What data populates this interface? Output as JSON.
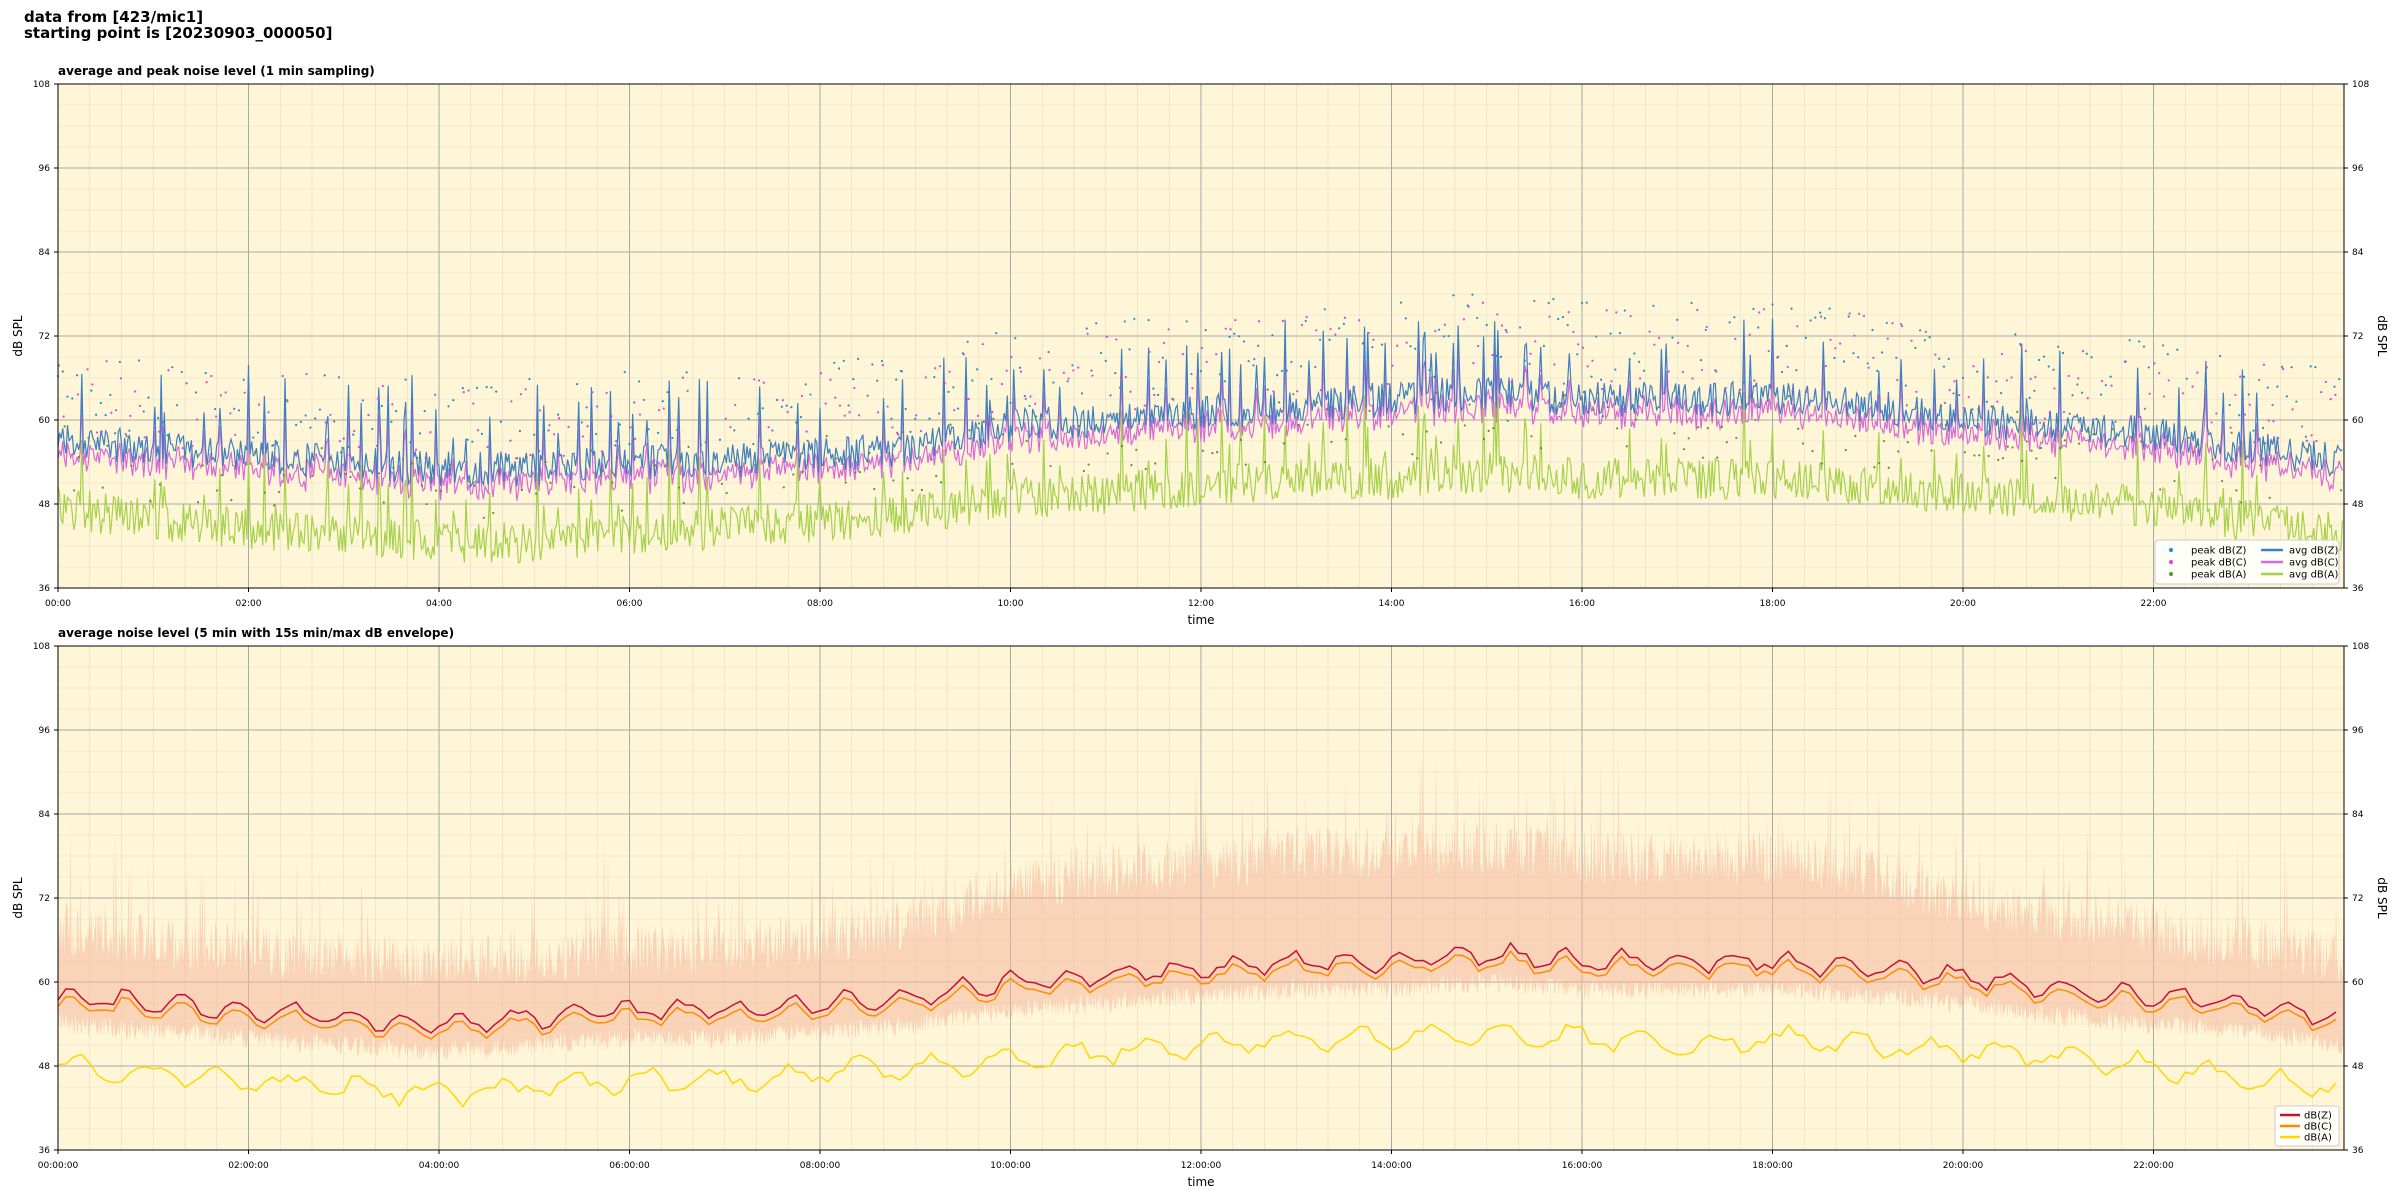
{
  "header": {
    "line1": "data from [423/mic1]",
    "line2": "starting point is [20230903_000050]"
  },
  "colors": {
    "plot_bg": "#fff6d8",
    "peak_z": "#1e90c8",
    "peak_c": "#e040e0",
    "peak_a": "#5a8f3a",
    "avg_z": "#3f7fbf",
    "avg_c": "#d86ad8",
    "avg_a": "#a6d24a",
    "dbz": "#c8102e",
    "dbc": "#ff8c00",
    "dba": "#ffd700",
    "envelope": "#f4b8a0"
  },
  "chart_data": [
    {
      "type": "line",
      "title": "average and peak noise level (1 min sampling)",
      "xlabel": "time",
      "ylabel": "dB SPL",
      "ylim": [
        36,
        108
      ],
      "yticks": [
        36,
        48,
        60,
        72,
        84,
        96,
        108
      ],
      "x_range_hours": [
        0,
        24
      ],
      "xtick_labels": [
        "00:00",
        "02:00",
        "04:00",
        "06:00",
        "08:00",
        "10:00",
        "12:00",
        "14:00",
        "16:00",
        "18:00",
        "20:00",
        "22:00"
      ],
      "grid": true,
      "legend_position": "lower-right",
      "legend": [
        "peak dB(Z)",
        "peak dB(C)",
        "peak dB(A)",
        "avg dB(Z)",
        "avg dB(C)",
        "avg dB(A)"
      ],
      "series_keyframes": {
        "time_hours": [
          0,
          1,
          2,
          3,
          4,
          5,
          6,
          7,
          8,
          9,
          10,
          11,
          12,
          13,
          14,
          15,
          16,
          17,
          18,
          19,
          20,
          21,
          22,
          23,
          24
        ],
        "avg_dbz": [
          57,
          56,
          55,
          54,
          53,
          53,
          54,
          54,
          55,
          56,
          59,
          60,
          61,
          62,
          63,
          64,
          63,
          63,
          63,
          62,
          60,
          59,
          58,
          56,
          54
        ],
        "avg_dbc": [
          55,
          54,
          53,
          52,
          51,
          51,
          52,
          52,
          53,
          54,
          57,
          58,
          59,
          60,
          61,
          62,
          61,
          61,
          61,
          60,
          58,
          57,
          56,
          54,
          52
        ],
        "avg_dba": [
          47,
          45,
          44,
          43,
          42,
          42,
          43,
          44,
          45,
          46,
          48,
          49,
          50,
          51,
          51,
          52,
          51,
          51,
          51,
          50,
          49,
          48,
          47,
          45,
          43
        ],
        "peak_dbz": [
          63,
          62,
          61,
          60,
          59,
          59,
          60,
          60,
          61,
          63,
          66,
          67,
          68,
          69,
          70,
          71,
          70,
          70,
          70,
          69,
          66,
          65,
          64,
          62,
          60
        ]
      }
    },
    {
      "type": "line",
      "title": "average noise level (5 min with 15s min/max dB envelope)",
      "xlabel": "time",
      "ylabel": "dB SPL",
      "ylim": [
        36,
        108
      ],
      "yticks": [
        36,
        48,
        60,
        72,
        84,
        96,
        108
      ],
      "x_range_hours": [
        0,
        24
      ],
      "xtick_labels": [
        "00:00:00",
        "02:00:00",
        "04:00:00",
        "06:00:00",
        "08:00:00",
        "10:00:00",
        "12:00:00",
        "14:00:00",
        "16:00:00",
        "18:00:00",
        "20:00:00",
        "22:00:00"
      ],
      "grid": true,
      "legend_position": "lower-right",
      "legend": [
        "dB(Z)",
        "dB(C)",
        "dB(A)"
      ],
      "series_keyframes": {
        "time_hours": [
          0,
          1,
          2,
          3,
          4,
          5,
          6,
          7,
          8,
          9,
          10,
          11,
          12,
          13,
          14,
          15,
          16,
          17,
          18,
          19,
          20,
          21,
          22,
          23,
          24
        ],
        "dbz": [
          58,
          57,
          56,
          55,
          54,
          55,
          56,
          56,
          57,
          58,
          60,
          61,
          62,
          63,
          63,
          64,
          63,
          63,
          63,
          62,
          61,
          59,
          58,
          57,
          55
        ],
        "dbc": [
          57,
          56,
          55,
          54,
          53,
          54,
          55,
          55,
          56,
          57,
          59,
          60,
          61,
          62,
          62,
          63,
          62,
          62,
          62,
          61,
          60,
          58,
          57,
          56,
          54
        ],
        "dba": [
          48,
          47,
          46,
          45,
          44,
          45,
          46,
          46,
          47,
          48,
          49,
          50,
          51,
          52,
          52,
          52,
          52,
          51,
          52,
          51,
          50,
          49,
          48,
          46,
          45
        ],
        "envelope_min": [
          54,
          53,
          52,
          51,
          50,
          51,
          52,
          52,
          53,
          54,
          56,
          57,
          58,
          59,
          59,
          60,
          59,
          59,
          59,
          58,
          57,
          55,
          54,
          53,
          51
        ],
        "envelope_max": [
          66,
          64,
          63,
          62,
          61,
          62,
          63,
          63,
          65,
          67,
          72,
          74,
          75,
          77,
          77,
          78,
          76,
          76,
          76,
          74,
          70,
          68,
          66,
          64,
          62
        ]
      }
    }
  ]
}
